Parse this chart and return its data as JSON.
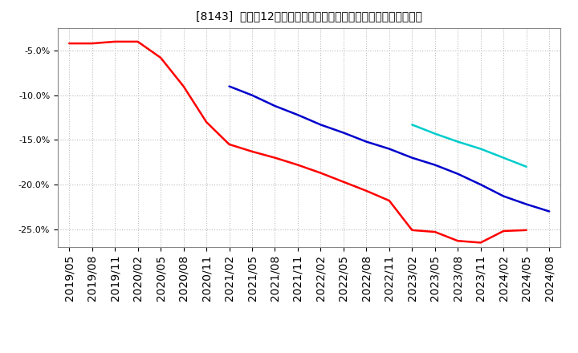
{
  "title": "[8143]  売上高12か月移動合計の対前年同期増減率の平均値の推移",
  "ylim": [
    -0.27,
    -0.025
  ],
  "yticks": [
    -0.25,
    -0.2,
    -0.15,
    -0.1,
    -0.05
  ],
  "background_color": "#ffffff",
  "plot_bg_color": "#ffffff",
  "grid_color": "#bbbbbb",
  "series": {
    "3year": {
      "color": "#ff0000",
      "points": [
        [
          "2019/05",
          -0.042
        ],
        [
          "2019/08",
          -0.042
        ],
        [
          "2019/11",
          -0.04
        ],
        [
          "2020/02",
          -0.04
        ],
        [
          "2020/05",
          -0.058
        ],
        [
          "2020/08",
          -0.09
        ],
        [
          "2020/11",
          -0.13
        ],
        [
          "2021/02",
          -0.155
        ],
        [
          "2021/05",
          -0.163
        ],
        [
          "2021/08",
          -0.17
        ],
        [
          "2021/11",
          -0.178
        ],
        [
          "2022/02",
          -0.187
        ],
        [
          "2022/05",
          -0.197
        ],
        [
          "2022/08",
          -0.207
        ],
        [
          "2022/11",
          -0.218
        ],
        [
          "2023/02",
          -0.251
        ],
        [
          "2023/05",
          -0.253
        ],
        [
          "2023/08",
          -0.263
        ],
        [
          "2023/11",
          -0.265
        ],
        [
          "2024/02",
          -0.252
        ],
        [
          "2024/05",
          -0.251
        ]
      ]
    },
    "5year": {
      "color": "#0000cc",
      "points": [
        [
          "2021/02",
          -0.09
        ],
        [
          "2021/05",
          -0.1
        ],
        [
          "2021/08",
          -0.112
        ],
        [
          "2021/11",
          -0.122
        ],
        [
          "2022/02",
          -0.133
        ],
        [
          "2022/05",
          -0.142
        ],
        [
          "2022/08",
          -0.152
        ],
        [
          "2022/11",
          -0.16
        ],
        [
          "2023/02",
          -0.17
        ],
        [
          "2023/05",
          -0.178
        ],
        [
          "2023/08",
          -0.188
        ],
        [
          "2023/11",
          -0.2
        ],
        [
          "2024/02",
          -0.213
        ],
        [
          "2024/05",
          -0.222
        ],
        [
          "2024/08",
          -0.23
        ]
      ]
    },
    "7year": {
      "color": "#00cccc",
      "points": [
        [
          "2023/02",
          -0.133
        ],
        [
          "2023/05",
          -0.143
        ],
        [
          "2023/08",
          -0.152
        ],
        [
          "2023/11",
          -0.16
        ],
        [
          "2024/02",
          -0.17
        ],
        [
          "2024/05",
          -0.18
        ]
      ]
    },
    "10year": {
      "color": "#008800",
      "points": []
    }
  },
  "x_ticks": [
    "2019/05",
    "2019/08",
    "2019/11",
    "2020/02",
    "2020/05",
    "2020/08",
    "2020/11",
    "2021/02",
    "2021/05",
    "2021/08",
    "2021/11",
    "2022/02",
    "2022/05",
    "2022/08",
    "2022/11",
    "2023/02",
    "2023/05",
    "2023/08",
    "2023/11",
    "2024/02",
    "2024/05",
    "2024/08"
  ]
}
